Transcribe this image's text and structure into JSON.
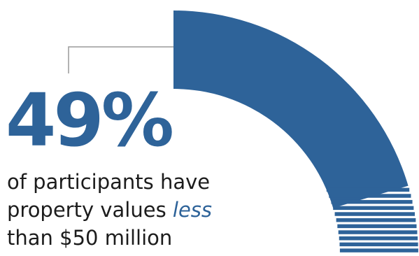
{
  "stat": {
    "value": "49%",
    "color": "#2e6399"
  },
  "caption": {
    "line1": "of participants have",
    "line2_a": "property values ",
    "line2_emph": "less",
    "line3": "than $50 million",
    "emph_color": "#2e6399"
  },
  "chart_data": {
    "type": "pie",
    "title": "",
    "slices": [
      {
        "label": "",
        "value": 49,
        "style": "solid",
        "color": "#2e6399"
      },
      {
        "label": "",
        "value": 11,
        "style": "striped",
        "color": "#2e6399"
      }
    ],
    "stripe_count": 11
  }
}
